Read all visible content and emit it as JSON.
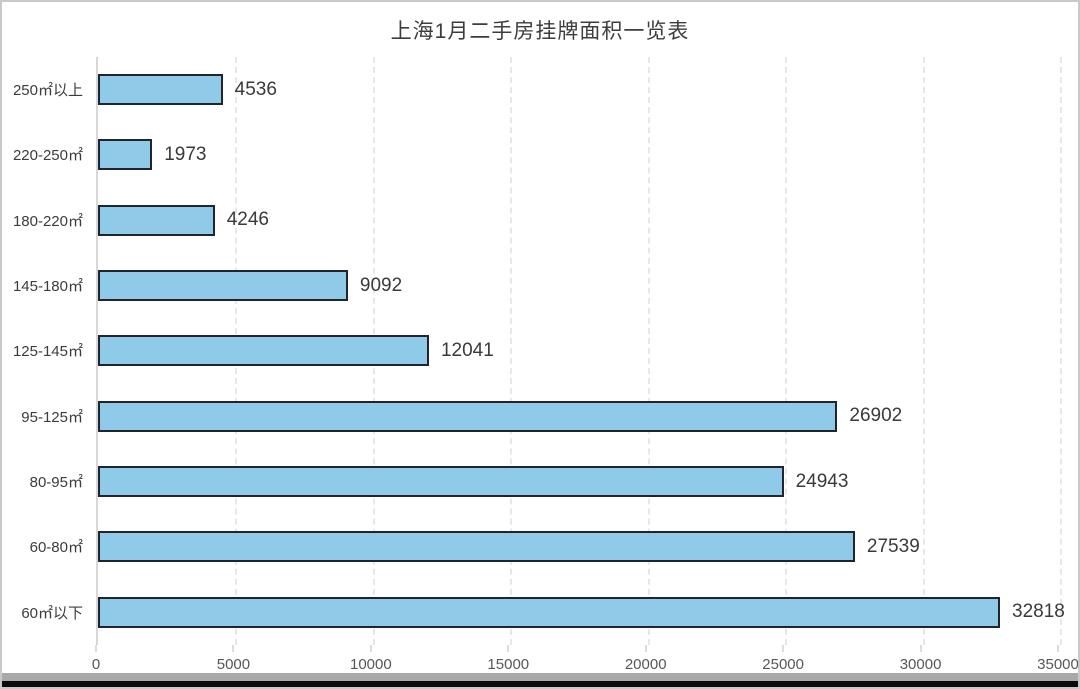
{
  "window": {
    "frame_color": "#c9c9c9",
    "bottom_bar_gray": "#a9a9a9",
    "bottom_bar_black": "#0a0a0a",
    "background": "#ffffff"
  },
  "chart_data": {
    "type": "bar",
    "orientation": "horizontal",
    "title": "上海1月二手房挂牌面积一览表",
    "categories": [
      "250㎡以上",
      "220-250㎡",
      "180-220㎡",
      "145-180㎡",
      "125-145㎡",
      "95-125㎡",
      "80-95㎡",
      "60-80㎡",
      "60㎡以下"
    ],
    "values": [
      4536,
      1973,
      4246,
      9092,
      12041,
      26902,
      24943,
      27539,
      32818
    ],
    "value_labels": [
      "4536",
      "1973",
      "4246",
      "9092",
      "12041",
      "26902",
      "24943",
      "27539",
      "32818"
    ],
    "xticks": [
      0,
      5000,
      10000,
      15000,
      20000,
      25000,
      30000,
      35000
    ],
    "xtick_labels": [
      "0",
      "5000",
      "10000",
      "15000",
      "20000",
      "25000",
      "30000",
      "35000"
    ],
    "xlim": [
      0,
      35000
    ],
    "xlabel": "",
    "ylabel": "",
    "legend": null,
    "grid": "vertical-dashed",
    "value_label_position": "outside-end",
    "colors": {
      "bar_fill": "#8fcae9",
      "bar_border": "#20252d",
      "gridline": "#e7e7e7",
      "axis_line": "#d8d8d8",
      "title_text": "#3d3d3d",
      "category_text": "#3c3c3c",
      "value_text": "#3a3a3a",
      "tick_text": "#575757"
    }
  }
}
